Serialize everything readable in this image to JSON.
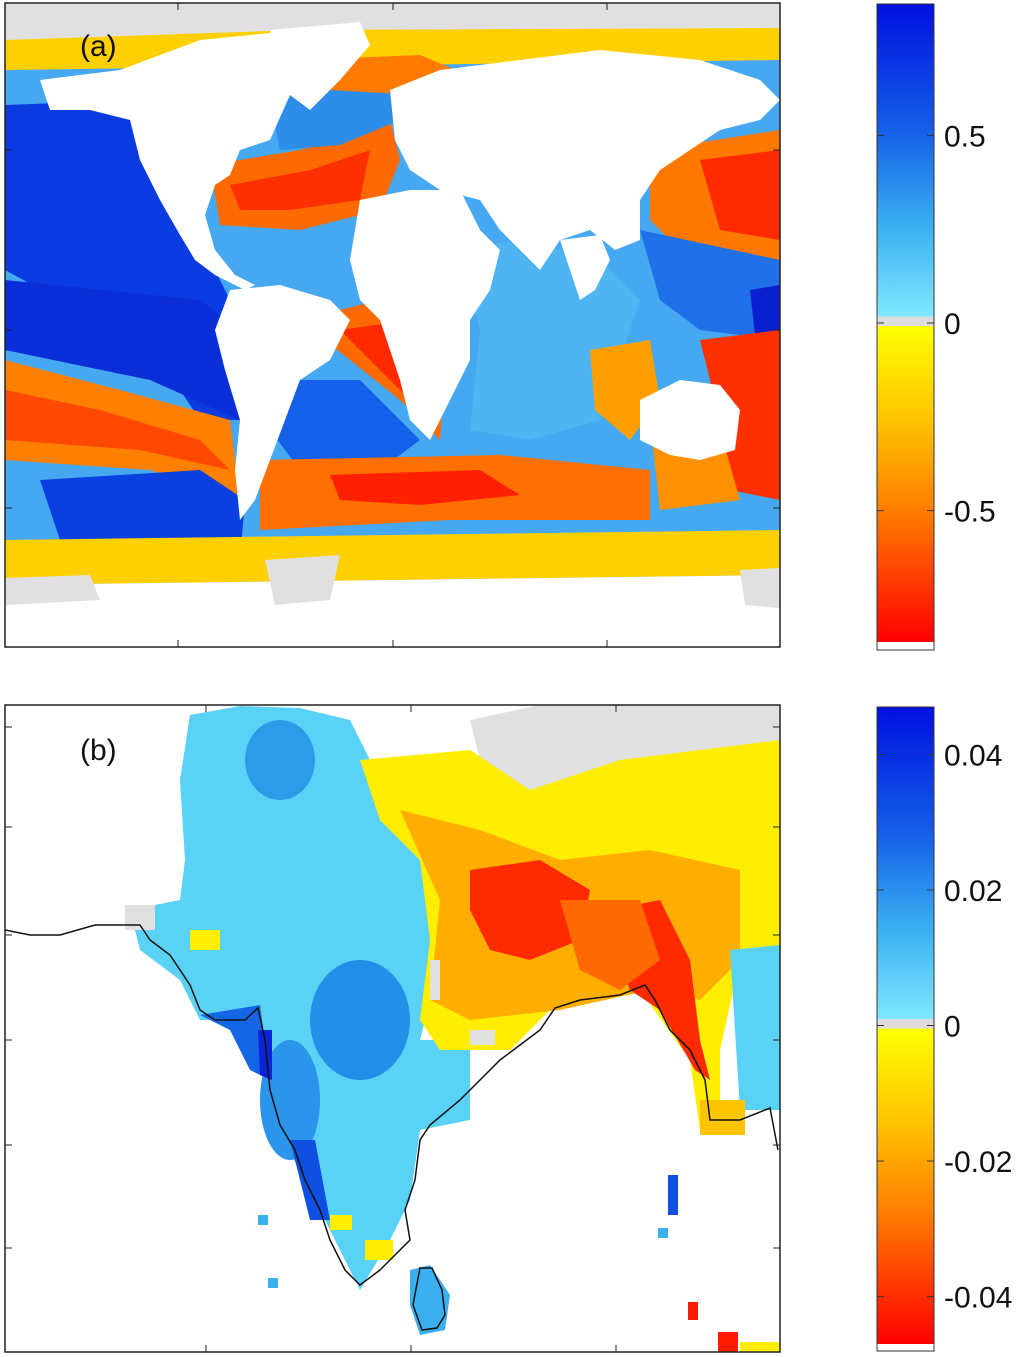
{
  "chart_data": [
    {
      "type": "heatmap",
      "panel_label": "(a)",
      "map_region": "global ocean",
      "colormap": {
        "negative": [
          "#ff0000",
          "#ff7a00",
          "#ffc400",
          "#ffff00"
        ],
        "positive": [
          "#7fe8ff",
          "#3ab0f0",
          "#1560e8",
          "#0010e0"
        ],
        "zero_band": "#dcdcdc",
        "missing": "#e0e0e0",
        "land": "#ffffff"
      },
      "colorbar": {
        "range": [
          -0.85,
          0.85
        ],
        "ticks": [
          0.5,
          0,
          -0.5
        ],
        "tick_labels": [
          "0.5",
          "0",
          "-0.5"
        ]
      }
    },
    {
      "type": "heatmap",
      "panel_label": "(b)",
      "map_region": "South Asia",
      "colormap": {
        "negative": [
          "#ff0000",
          "#ff7a00",
          "#ffc400",
          "#ffff00"
        ],
        "positive": [
          "#7fe8ff",
          "#3ab0f0",
          "#1560e8",
          "#0010e0"
        ],
        "zero_band": "#dcdcdc",
        "missing": "#e0e0e0",
        "land": "#ffffff"
      },
      "colorbar": {
        "range": [
          -0.047,
          0.047
        ],
        "ticks": [
          0.04,
          0.02,
          0,
          -0.02,
          -0.04
        ],
        "tick_labels": [
          "0.04",
          "0.02",
          "0",
          "-0.02",
          "-0.04"
        ]
      }
    }
  ]
}
